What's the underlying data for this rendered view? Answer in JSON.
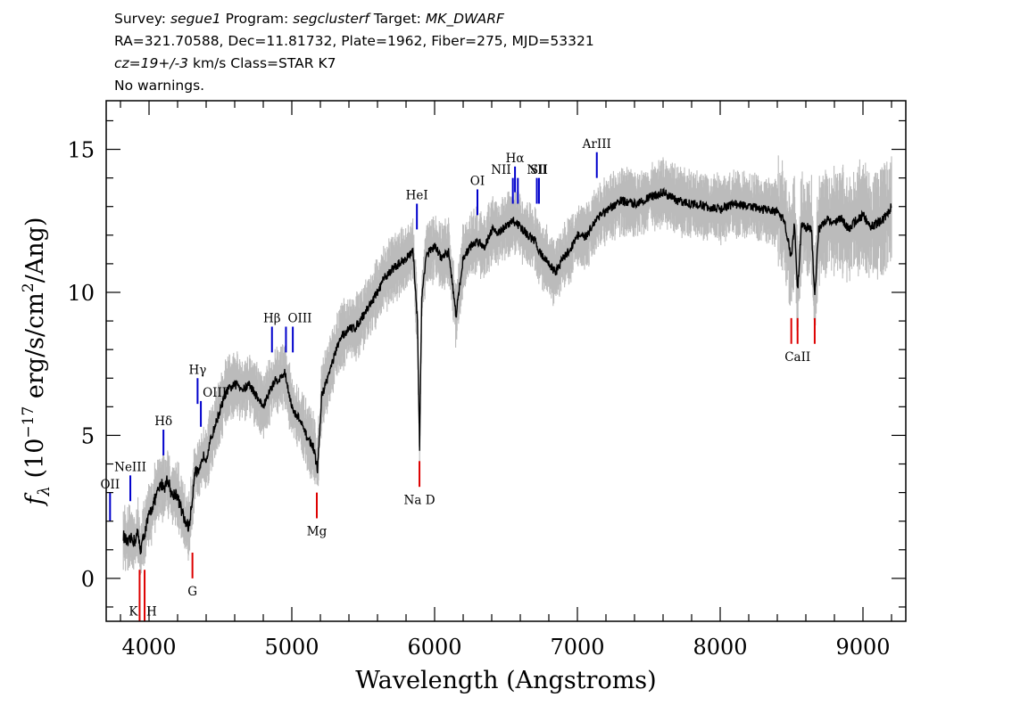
{
  "header": {
    "survey_label": "Survey:",
    "survey": "segue1",
    "program_label": "Program:",
    "program": "segclusterf",
    "target_label": "Target:",
    "target": "MK_DWARF",
    "line2": "RA=321.70588, Dec=11.81732, Plate=1962, Fiber=275, MJD=53321",
    "cz_italic": "cz=19+/-3",
    "cz_rest": " km/s Class=STAR K7",
    "line4": "No warnings."
  },
  "chart_data": {
    "type": "line",
    "xlabel": "Wavelength (Angstroms)",
    "ylabel": "f_λ (10^-17 erg/s/cm^2/Ang)",
    "ylabel_parts": {
      "f": "f",
      "sub": "λ",
      "mid": " (10",
      "sup1": "−17",
      "mid2": " erg/s/cm",
      "sup2": "2",
      "end": "/Ang)"
    },
    "xlim": [
      3700,
      9300
    ],
    "ylim": [
      -1.5,
      16.7
    ],
    "xticks": [
      4000,
      5000,
      6000,
      7000,
      8000,
      9000
    ],
    "xtick_labels": [
      "4000",
      "5000",
      "6000",
      "7000",
      "8000",
      "9000"
    ],
    "yticks": [
      0,
      5,
      10,
      15
    ],
    "ytick_labels": [
      "0",
      "5",
      "10",
      "15"
    ],
    "colors": {
      "spectrum": "#000000",
      "noise": "#bbbbbb",
      "emission": "#0000cc",
      "absorption": "#dd0000"
    },
    "series": [
      {
        "x": [
          3820,
          3850,
          3880,
          3900,
          3920,
          3940,
          3960,
          3980,
          4000,
          4030,
          4060,
          4090,
          4110,
          4130,
          4160,
          4190,
          4220,
          4250,
          4280,
          4300,
          4320,
          4350,
          4380,
          4400,
          4430,
          4460,
          4500,
          4540,
          4580,
          4620,
          4660,
          4700,
          4750,
          4800,
          4850,
          4880,
          4920,
          4950,
          4980,
          5010,
          5050,
          5100,
          5150,
          5180,
          5210,
          5250,
          5300,
          5350,
          5400,
          5450,
          5500,
          5550,
          5600,
          5650,
          5700,
          5750,
          5800,
          5850,
          5880,
          5895,
          5910,
          5940,
          6000,
          6050,
          6100,
          6150,
          6200,
          6250,
          6300,
          6350,
          6400,
          6450,
          6500,
          6550,
          6600,
          6650,
          6700,
          6750,
          6800,
          6850,
          6900,
          6950,
          7000,
          7050,
          7100,
          7150,
          7200,
          7300,
          7400,
          7500,
          7600,
          7700,
          7800,
          7900,
          8000,
          8100,
          8200,
          8300,
          8400,
          8450,
          8498,
          8520,
          8542,
          8570,
          8600,
          8640,
          8662,
          8690,
          8750,
          8800,
          8850,
          8900,
          8950,
          9000,
          9050,
          9100,
          9150,
          9200
        ],
        "y": [
          1.5,
          1.2,
          1.4,
          1.3,
          1.6,
          1.0,
          1.4,
          1.8,
          2.2,
          2.6,
          3.0,
          3.3,
          3.2,
          3.5,
          2.9,
          3.0,
          2.5,
          2.0,
          1.8,
          2.6,
          3.8,
          3.6,
          4.3,
          4.2,
          4.8,
          5.3,
          5.9,
          6.5,
          6.7,
          6.8,
          6.6,
          6.8,
          6.4,
          6.0,
          6.6,
          6.9,
          7.0,
          7.2,
          6.5,
          5.8,
          5.6,
          5.0,
          4.6,
          3.8,
          6.4,
          7.0,
          7.8,
          8.5,
          8.7,
          8.8,
          9.2,
          9.6,
          10.0,
          10.5,
          10.8,
          11.0,
          11.2,
          11.4,
          9.0,
          4.6,
          9.8,
          11.3,
          11.6,
          11.2,
          11.4,
          9.2,
          11.2,
          11.6,
          11.8,
          11.6,
          12.2,
          12.1,
          12.3,
          12.5,
          12.3,
          12.0,
          11.8,
          11.3,
          11.0,
          10.7,
          11.2,
          11.5,
          12.0,
          11.9,
          12.3,
          12.7,
          12.8,
          13.2,
          13.1,
          13.3,
          13.5,
          13.2,
          13.1,
          13.0,
          12.9,
          13.1,
          13.0,
          12.9,
          12.8,
          12.5,
          11.2,
          12.4,
          10.0,
          12.4,
          12.3,
          12.2,
          9.8,
          12.2,
          12.6,
          12.4,
          12.6,
          12.2,
          12.5,
          12.7,
          12.3,
          12.4,
          12.6,
          13.0
        ]
      }
    ],
    "lines": [
      {
        "label": "OII",
        "kind": "emission",
        "wave": 3727,
        "y0": 2.0,
        "y1": 3.0,
        "label_y": 3.15,
        "anchor": "middle"
      },
      {
        "label": "NeIII",
        "kind": "emission",
        "wave": 3869,
        "y0": 2.7,
        "y1": 3.6,
        "label_y": 3.75,
        "anchor": "middle"
      },
      {
        "label": "Hδ",
        "kind": "emission",
        "wave": 4101,
        "y0": 4.3,
        "y1": 5.2,
        "label_y": 5.35,
        "anchor": "middle"
      },
      {
        "label": "Hγ",
        "kind": "emission",
        "wave": 4340,
        "y0": 6.1,
        "y1": 7.0,
        "label_y": 7.15,
        "anchor": "middle"
      },
      {
        "label": "OIII",
        "kind": "emission",
        "wave": 4363,
        "y0": 5.3,
        "y1": 6.2,
        "label_y": 6.35,
        "anchor": "start"
      },
      {
        "label": "Hβ",
        "kind": "emission",
        "wave": 4861,
        "y0": 7.9,
        "y1": 8.8,
        "label_y": 8.95,
        "anchor": "middle"
      },
      {
        "label": "OIII",
        "kind": "emission",
        "wave": 4959,
        "y0": 7.9,
        "y1": 8.8,
        "label_y": 8.95,
        "anchor": "start"
      },
      {
        "label": "",
        "kind": "emission",
        "wave": 5007,
        "y0": 7.9,
        "y1": 8.8,
        "label_y": 8.95,
        "anchor": "middle"
      },
      {
        "label": "HeI",
        "kind": "emission",
        "wave": 5876,
        "y0": 12.2,
        "y1": 13.1,
        "label_y": 13.25,
        "anchor": "middle"
      },
      {
        "label": "OI",
        "kind": "emission",
        "wave": 6300,
        "y0": 12.7,
        "y1": 13.6,
        "label_y": 13.75,
        "anchor": "middle"
      },
      {
        "label": "NII",
        "kind": "emission",
        "wave": 6548,
        "y0": 13.1,
        "y1": 14.0,
        "label_y": 14.15,
        "anchor": "end"
      },
      {
        "label": "Hα",
        "kind": "emission",
        "wave": 6563,
        "y0": 13.5,
        "y1": 14.4,
        "label_y": 14.55,
        "anchor": "middle"
      },
      {
        "label": "",
        "kind": "emission",
        "wave": 6583,
        "y0": 13.1,
        "y1": 14.0,
        "label_y": 14.15,
        "anchor": "middle"
      },
      {
        "label": "NII",
        "kind": "emission",
        "wave": 6716,
        "y0": 13.1,
        "y1": 14.0,
        "label_y": 14.15,
        "anchor": "middle"
      },
      {
        "label": "SII",
        "kind": "emission",
        "wave": 6731,
        "y0": 13.1,
        "y1": 14.0,
        "label_y": 14.15,
        "anchor": "middle"
      },
      {
        "label": "ArIII",
        "kind": "emission",
        "wave": 7136,
        "y0": 14.0,
        "y1": 14.9,
        "label_y": 15.05,
        "anchor": "middle"
      },
      {
        "label": "K",
        "kind": "absorption",
        "wave": 3934,
        "y0": -1.5,
        "y1": 0.3,
        "label_y": -1.3,
        "anchor": "end"
      },
      {
        "label": "H",
        "kind": "absorption",
        "wave": 3969,
        "y0": -1.5,
        "y1": 0.3,
        "label_y": -1.3,
        "anchor": "start"
      },
      {
        "label": "G",
        "kind": "absorption",
        "wave": 4304,
        "y0": 0.0,
        "y1": 0.9,
        "label_y": -0.6,
        "anchor": "middle"
      },
      {
        "label": "Mg",
        "kind": "absorption",
        "wave": 5175,
        "y0": 2.1,
        "y1": 3.0,
        "label_y": 1.5,
        "anchor": "middle"
      },
      {
        "label": "Na D",
        "kind": "absorption",
        "wave": 5894,
        "y0": 3.2,
        "y1": 4.1,
        "label_y": 2.6,
        "anchor": "middle"
      },
      {
        "label": "",
        "kind": "absorption",
        "wave": 8498,
        "y0": 8.2,
        "y1": 9.1,
        "label_y": 7.6,
        "anchor": "middle"
      },
      {
        "label": "CaII",
        "kind": "absorption",
        "wave": 8542,
        "y0": 8.2,
        "y1": 9.1,
        "label_y": 7.6,
        "anchor": "middle"
      },
      {
        "label": "",
        "kind": "absorption",
        "wave": 8662,
        "y0": 8.2,
        "y1": 9.1,
        "label_y": 7.6,
        "anchor": "middle"
      }
    ]
  }
}
